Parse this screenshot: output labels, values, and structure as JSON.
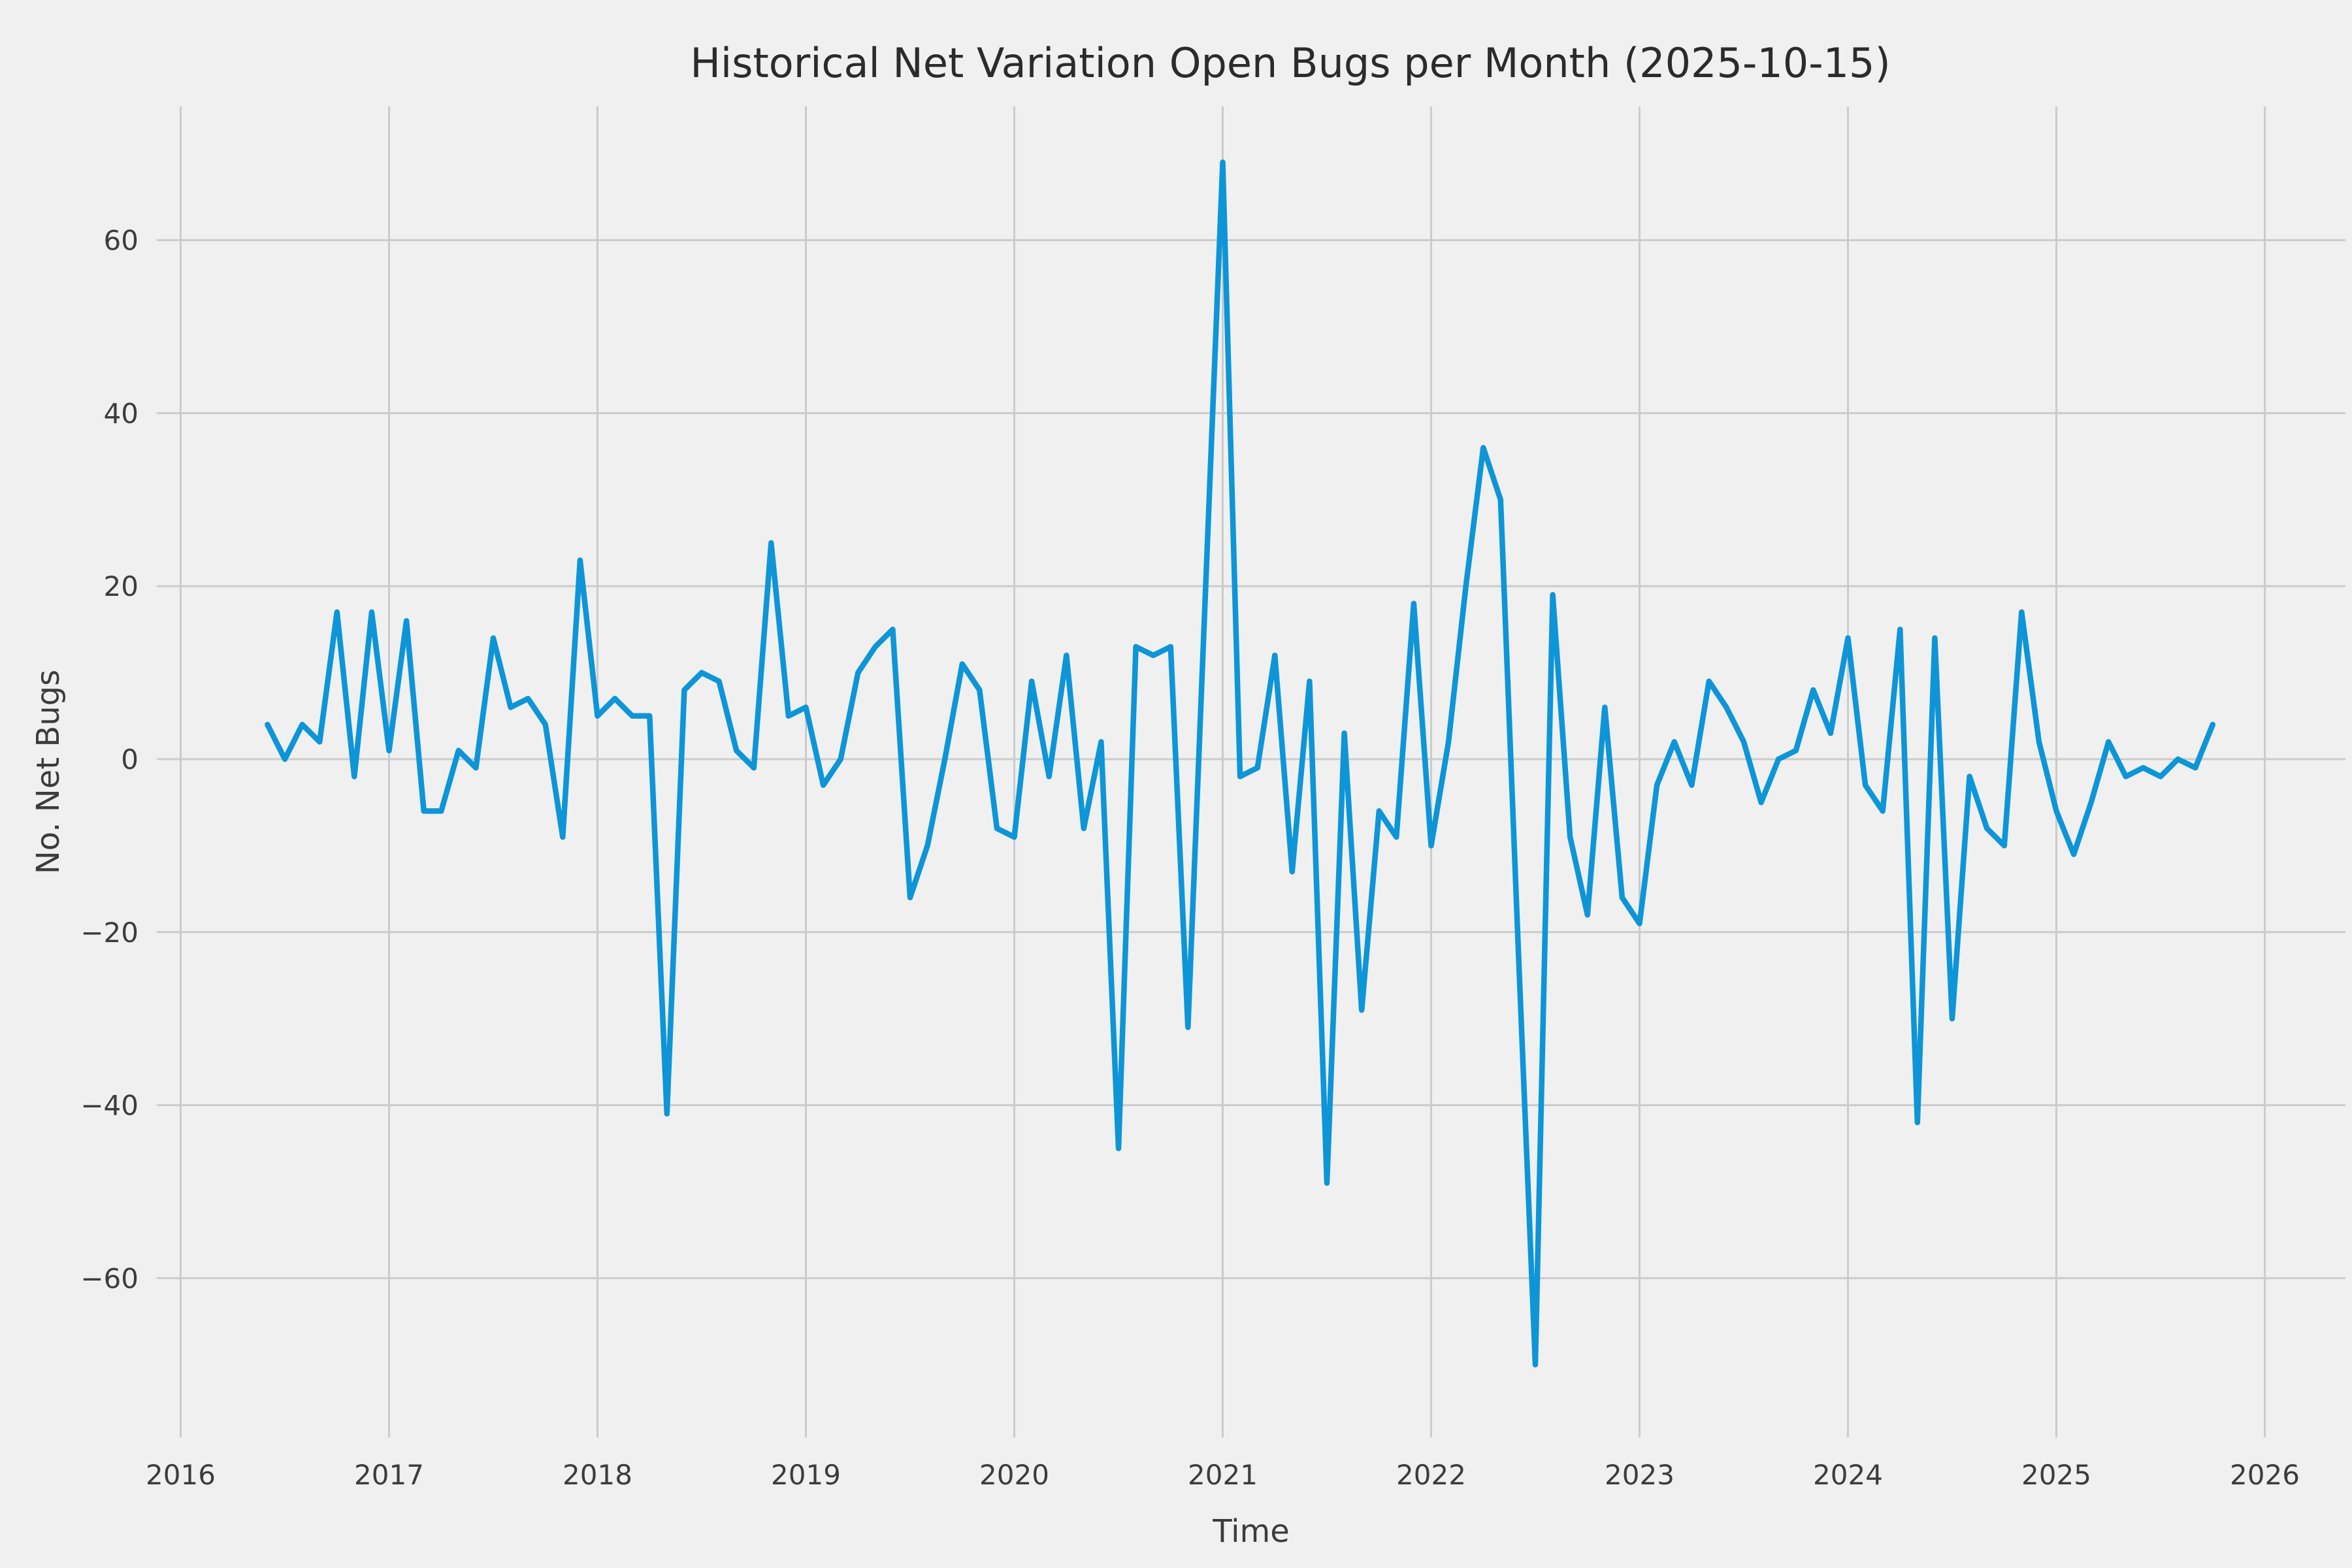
{
  "chart_data": {
    "type": "line",
    "title": "Historical Net Variation Open Bugs per Month (2025-10-15)",
    "xlabel": "Time",
    "ylabel": "No. Net Bugs",
    "legend_position": "none",
    "grid": true,
    "background_color": "#f0f0f0",
    "grid_color": "#cbcbcb",
    "text_color": "#3c3c3c",
    "line_color": "#0d95d8",
    "x_ticks": [
      {
        "value": 2016,
        "label": "2016"
      },
      {
        "value": 2017,
        "label": "2017"
      },
      {
        "value": 2018,
        "label": "2018"
      },
      {
        "value": 2019,
        "label": "2019"
      },
      {
        "value": 2020,
        "label": "2020"
      },
      {
        "value": 2021,
        "label": "2021"
      },
      {
        "value": 2022,
        "label": "2022"
      },
      {
        "value": 2023,
        "label": "2023"
      },
      {
        "value": 2024,
        "label": "2024"
      },
      {
        "value": 2025,
        "label": "2025"
      },
      {
        "value": 2026,
        "label": "2026"
      }
    ],
    "y_ticks": [
      {
        "value": -60,
        "label": "−60"
      },
      {
        "value": -40,
        "label": "−40"
      },
      {
        "value": -20,
        "label": "−20"
      },
      {
        "value": 0,
        "label": "0"
      },
      {
        "value": 20,
        "label": "20"
      },
      {
        "value": 40,
        "label": "40"
      },
      {
        "value": 60,
        "label": "60"
      }
    ],
    "xlim": [
      2015.886,
      2026.42
    ],
    "ylim": [
      -78.4,
      75.4
    ],
    "series": [
      {
        "name": "net-variation-open-bugs",
        "points": [
          [
            "2016-06",
            4
          ],
          [
            "2016-07",
            0
          ],
          [
            "2016-08",
            4
          ],
          [
            "2016-09",
            2
          ],
          [
            "2016-10",
            17
          ],
          [
            "2016-11",
            -2
          ],
          [
            "2016-12",
            17
          ],
          [
            "2017-01",
            1
          ],
          [
            "2017-02",
            16
          ],
          [
            "2017-03",
            -6
          ],
          [
            "2017-04",
            -6
          ],
          [
            "2017-05",
            1
          ],
          [
            "2017-06",
            -1
          ],
          [
            "2017-07",
            14
          ],
          [
            "2017-08",
            6
          ],
          [
            "2017-09",
            7
          ],
          [
            "2017-10",
            4
          ],
          [
            "2017-11",
            -9
          ],
          [
            "2017-12",
            23
          ],
          [
            "2018-01",
            5
          ],
          [
            "2018-02",
            7
          ],
          [
            "2018-03",
            5
          ],
          [
            "2018-04",
            5
          ],
          [
            "2018-05",
            -41
          ],
          [
            "2018-06",
            8
          ],
          [
            "2018-07",
            10
          ],
          [
            "2018-08",
            9
          ],
          [
            "2018-09",
            1
          ],
          [
            "2018-10",
            -1
          ],
          [
            "2018-11",
            25
          ],
          [
            "2018-12",
            5
          ],
          [
            "2019-01",
            6
          ],
          [
            "2019-02",
            -3
          ],
          [
            "2019-03",
            0
          ],
          [
            "2019-04",
            10
          ],
          [
            "2019-05",
            13
          ],
          [
            "2019-06",
            15
          ],
          [
            "2019-07",
            -16
          ],
          [
            "2019-08",
            -10
          ],
          [
            "2019-09",
            0
          ],
          [
            "2019-10",
            11
          ],
          [
            "2019-11",
            8
          ],
          [
            "2019-12",
            -8
          ],
          [
            "2020-01",
            -9
          ],
          [
            "2020-02",
            9
          ],
          [
            "2020-03",
            -2
          ],
          [
            "2020-04",
            12
          ],
          [
            "2020-05",
            -8
          ],
          [
            "2020-06",
            2
          ],
          [
            "2020-07",
            -45
          ],
          [
            "2020-08",
            13
          ],
          [
            "2020-09",
            12
          ],
          [
            "2020-10",
            13
          ],
          [
            "2020-11",
            -31
          ],
          [
            "2020-12",
            19
          ],
          [
            "2021-01",
            69
          ],
          [
            "2021-02",
            -2
          ],
          [
            "2021-03",
            -1
          ],
          [
            "2021-04",
            12
          ],
          [
            "2021-05",
            -13
          ],
          [
            "2021-06",
            9
          ],
          [
            "2021-07",
            -49
          ],
          [
            "2021-08",
            3
          ],
          [
            "2021-09",
            -29
          ],
          [
            "2021-10",
            -6
          ],
          [
            "2021-11",
            -9
          ],
          [
            "2021-12",
            18
          ],
          [
            "2022-01",
            -10
          ],
          [
            "2022-02",
            2
          ],
          [
            "2022-03",
            20
          ],
          [
            "2022-04",
            36
          ],
          [
            "2022-05",
            30
          ],
          [
            "2022-06",
            -21
          ],
          [
            "2022-07",
            -70
          ],
          [
            "2022-08",
            19
          ],
          [
            "2022-09",
            -9
          ],
          [
            "2022-10",
            -18
          ],
          [
            "2022-11",
            6
          ],
          [
            "2022-12",
            -16
          ],
          [
            "2023-01",
            -19
          ],
          [
            "2023-02",
            -3
          ],
          [
            "2023-03",
            2
          ],
          [
            "2023-04",
            -3
          ],
          [
            "2023-05",
            9
          ],
          [
            "2023-06",
            6
          ],
          [
            "2023-07",
            2
          ],
          [
            "2023-08",
            -5
          ],
          [
            "2023-09",
            0
          ],
          [
            "2023-10",
            1
          ],
          [
            "2023-11",
            8
          ],
          [
            "2023-12",
            3
          ],
          [
            "2024-01",
            14
          ],
          [
            "2024-02",
            -3
          ],
          [
            "2024-03",
            -6
          ],
          [
            "2024-04",
            15
          ],
          [
            "2024-05",
            -42
          ],
          [
            "2024-06",
            14
          ],
          [
            "2024-07",
            -30
          ],
          [
            "2024-08",
            -2
          ],
          [
            "2024-09",
            -8
          ],
          [
            "2024-10",
            -10
          ],
          [
            "2024-11",
            17
          ],
          [
            "2024-12",
            2
          ],
          [
            "2025-01",
            -6
          ],
          [
            "2025-02",
            -11
          ],
          [
            "2025-03",
            -5
          ],
          [
            "2025-04",
            2
          ],
          [
            "2025-05",
            -2
          ],
          [
            "2025-06",
            -1
          ],
          [
            "2025-07",
            -2
          ],
          [
            "2025-08",
            0
          ],
          [
            "2025-09",
            -1
          ],
          [
            "2025-10",
            4
          ]
        ]
      }
    ]
  }
}
